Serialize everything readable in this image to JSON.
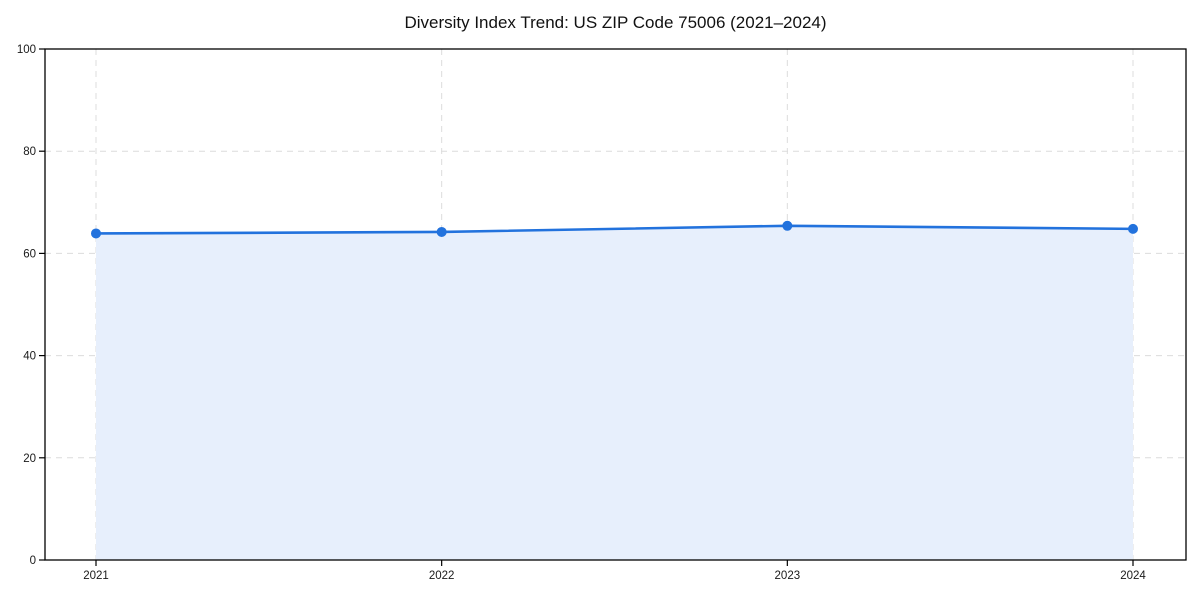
{
  "title": "Diversity Index Trend: US ZIP Code 75006 (2021–2024)",
  "chart_data": {
    "type": "area",
    "title": "Diversity Index Trend: US ZIP Code 75006 (2021–2024)",
    "categories": [
      "2021",
      "2022",
      "2023",
      "2024"
    ],
    "x": [
      2021,
      2022,
      2023,
      2024
    ],
    "series": [
      {
        "name": "Diversity Index",
        "values": [
          63.9,
          64.2,
          65.4,
          64.8
        ]
      }
    ],
    "xlabel": "",
    "ylabel": "",
    "ylim": [
      0,
      100
    ],
    "yticks": [
      0,
      20,
      40,
      60,
      80,
      100
    ],
    "grid": true,
    "grid_style": "dashed",
    "legend": "none",
    "marker": "circle",
    "colors": {
      "line": "#2272dd",
      "marker": "#2272dd",
      "fill": "#e7effc",
      "grid": "#dcdcdc",
      "spine": "#000000",
      "tick_label": "#1a1a1a",
      "title": "#111111",
      "background": "#ffffff"
    }
  }
}
